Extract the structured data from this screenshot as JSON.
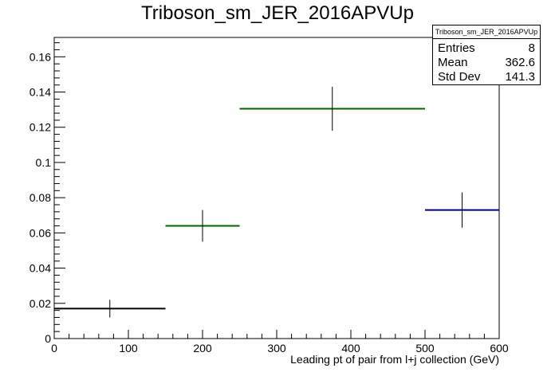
{
  "chart_data": {
    "type": "histogram",
    "title": "Triboson_sm_JER_2016APVUp",
    "xlabel": "Leading pt of pair from l+j collection (GeV)",
    "ylabel": "",
    "xlim": [
      0,
      600
    ],
    "ylim": [
      0,
      0.171
    ],
    "x_ticks": [
      0,
      100,
      200,
      300,
      400,
      500,
      600
    ],
    "y_ticks": [
      0,
      0.02,
      0.04,
      0.06,
      0.08,
      0.1,
      0.12,
      0.14,
      0.16
    ],
    "grid": false,
    "bins": [
      {
        "xlow": 0,
        "xhigh": 150,
        "x": 75,
        "value": 0.017,
        "error": 0.005,
        "color": "#000000"
      },
      {
        "xlow": 150,
        "xhigh": 250,
        "x": 200,
        "value": 0.064,
        "error": 0.009,
        "color": "#006400"
      },
      {
        "xlow": 250,
        "xhigh": 500,
        "x": 375,
        "value": 0.1305,
        "error": 0.0125,
        "color": "#006400"
      },
      {
        "xlow": 500,
        "xhigh": 600,
        "x": 550,
        "value": 0.073,
        "error": 0.01,
        "color": "#000080"
      }
    ],
    "stats": {
      "name": "Triboson_sm_JER_2016APVUp",
      "entries_label": "Entries",
      "entries": "8",
      "mean_label": "Mean",
      "mean": "362.6",
      "stddev_label": "Std Dev",
      "stddev": "141.3"
    }
  }
}
